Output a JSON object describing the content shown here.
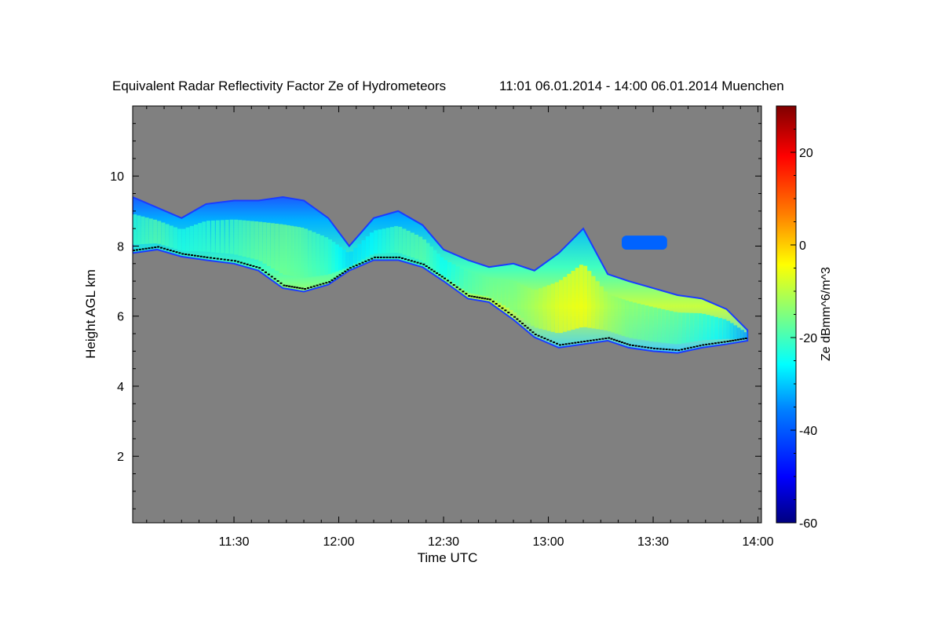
{
  "chart_data": {
    "type": "heatmap",
    "title": "Equivalent Radar Reflectivity Factor Ze of Hydrometeors",
    "period": "11:01 06.01.2014 - 14:00 06.01.2014 Muenchen",
    "xlabel": "Time UTC",
    "ylabel": "Height AGL km",
    "x_range_minutes_utc": [
      661,
      841
    ],
    "xticks": [
      {
        "label": "11:30",
        "min": 690
      },
      {
        "label": "12:00",
        "min": 720
      },
      {
        "label": "12:30",
        "min": 750
      },
      {
        "label": "13:00",
        "min": 780
      },
      {
        "label": "13:30",
        "min": 810
      },
      {
        "label": "14:00",
        "min": 840
      }
    ],
    "ylim": [
      0.1,
      12.0
    ],
    "yticks": [
      {
        "label": "2",
        "v": 2
      },
      {
        "label": "4",
        "v": 4
      },
      {
        "label": "6",
        "v": 6
      },
      {
        "label": "8",
        "v": 8
      },
      {
        "label": "10",
        "v": 10
      }
    ],
    "background_color": "#808080",
    "colorbar": {
      "label": "Ze dBmm^6/m^3",
      "range": [
        -60,
        30
      ],
      "ticks": [
        {
          "label": "20",
          "v": 20
        },
        {
          "label": "0",
          "v": 0
        },
        {
          "label": "-20",
          "v": -20
        },
        {
          "label": "-40",
          "v": -40
        },
        {
          "label": "-60",
          "v": -60
        }
      ],
      "colormap": [
        "#00007f",
        "#0000ff",
        "#007fff",
        "#00ffff",
        "#7fff7f",
        "#ffff00",
        "#ff7f00",
        "#ff0000",
        "#7f0000"
      ]
    },
    "cloud_layer": {
      "description_minutes": "time in UTC minutes, base/top heights in km",
      "points": [
        {
          "t": 661,
          "base": 7.8,
          "top": 9.4,
          "ze": -22
        },
        {
          "t": 668,
          "base": 7.9,
          "top": 9.1,
          "ze": -18
        },
        {
          "t": 675,
          "base": 7.7,
          "top": 8.8,
          "ze": -24
        },
        {
          "t": 682,
          "base": 7.6,
          "top": 9.2,
          "ze": -22
        },
        {
          "t": 690,
          "base": 7.5,
          "top": 9.3,
          "ze": -20
        },
        {
          "t": 697,
          "base": 7.3,
          "top": 9.3,
          "ze": -17
        },
        {
          "t": 704,
          "base": 6.8,
          "top": 9.4,
          "ze": -16
        },
        {
          "t": 710,
          "base": 6.7,
          "top": 9.3,
          "ze": -18
        },
        {
          "t": 717,
          "base": 6.9,
          "top": 8.8,
          "ze": -22
        },
        {
          "t": 723,
          "base": 7.3,
          "top": 8.0,
          "ze": -30
        },
        {
          "t": 730,
          "base": 7.6,
          "top": 8.8,
          "ze": -26
        },
        {
          "t": 737,
          "base": 7.6,
          "top": 9.0,
          "ze": -20
        },
        {
          "t": 744,
          "base": 7.4,
          "top": 8.6,
          "ze": -18
        },
        {
          "t": 750,
          "base": 7.0,
          "top": 7.9,
          "ze": -26
        },
        {
          "t": 757,
          "base": 6.5,
          "top": 7.6,
          "ze": -20
        },
        {
          "t": 763,
          "base": 6.4,
          "top": 7.4,
          "ze": -17
        },
        {
          "t": 770,
          "base": 5.9,
          "top": 7.5,
          "ze": -16
        },
        {
          "t": 776,
          "base": 5.4,
          "top": 7.3,
          "ze": -12
        },
        {
          "t": 783,
          "base": 5.1,
          "top": 7.8,
          "ze": -6
        },
        {
          "t": 790,
          "base": 5.2,
          "top": 8.5,
          "ze": -4
        },
        {
          "t": 797,
          "base": 5.3,
          "top": 7.2,
          "ze": -12
        },
        {
          "t": 803,
          "base": 5.1,
          "top": 7.0,
          "ze": -16
        },
        {
          "t": 810,
          "base": 5.0,
          "top": 6.8,
          "ze": -18
        },
        {
          "t": 817,
          "base": 4.95,
          "top": 6.6,
          "ze": -20
        },
        {
          "t": 824,
          "base": 5.1,
          "top": 6.5,
          "ze": -24
        },
        {
          "t": 831,
          "base": 5.2,
          "top": 6.2,
          "ze": -28
        },
        {
          "t": 837,
          "base": 5.3,
          "top": 5.6,
          "ze": -36
        }
      ],
      "upper_patch": {
        "t_start": 801,
        "t_end": 814,
        "base": 7.9,
        "top": 8.3,
        "ze": -40
      }
    }
  }
}
